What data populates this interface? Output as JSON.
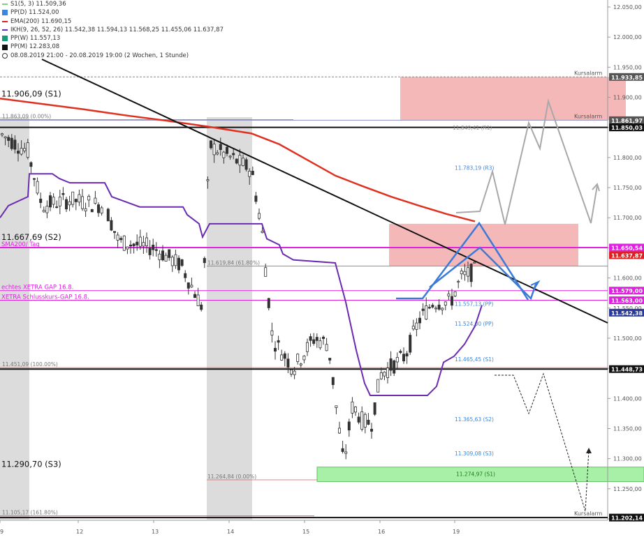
{
  "chart_data": {
    "type": "candlestick",
    "x_ticks": [
      "9",
      "12",
      "13",
      "14",
      "15",
      "16",
      "19"
    ],
    "y_ticks": [
      "12.050,00",
      "12.000,00",
      "11.950,00",
      "11.900,00",
      "11.850,00",
      "11.800,00",
      "11.750,00",
      "11.700,00",
      "11.650,00",
      "11.600,00",
      "11.550,00",
      "11.500,00",
      "11.450,00",
      "11.400,00",
      "11.350,00",
      "11.300,00",
      "11.250,00",
      "11.200,00"
    ],
    "ylim": [
      11195,
      12060
    ],
    "legend": [
      {
        "label": "S1(5, 3) 11.509,36",
        "color": "#7ed07e",
        "kind": "line"
      },
      {
        "label": "PP(D) 11.524,00",
        "color": "#3a86e0",
        "kind": "box"
      },
      {
        "label": "EMA(200) 11.690,15",
        "color": "#e02020",
        "kind": "line"
      },
      {
        "label": "IKH(9, 26, 52, 26) 11.542,38 11.594,13 11.568,25 11.455,06 11.637,87",
        "color": "#6a2bb0",
        "kind": "line"
      },
      {
        "label": "PP(W) 11.557,13",
        "color": "#1a9a7a",
        "kind": "box"
      },
      {
        "label": "PP(M) 12.283,08",
        "color": "#111111",
        "kind": "box"
      },
      {
        "label": "08.08.2019 21:00 - 20.08.2019 19:00  (2 Wochen, 1 Stunde)",
        "color": "#333333",
        "kind": "clock"
      }
    ],
    "price_badges": [
      {
        "value": 11933.85,
        "text": "11.933,85",
        "color": "#555555"
      },
      {
        "value": 11861.97,
        "text": "11.861,97",
        "color": "#555555"
      },
      {
        "value": 11850.03,
        "text": "11.850,03",
        "color": "#111111"
      },
      {
        "value": 11650.54,
        "text": "11.650,54",
        "color": "#e020e0"
      },
      {
        "value": 11637.87,
        "text": "11.637,87",
        "color": "#e02020"
      },
      {
        "value": 11579.0,
        "text": "11.579,00",
        "color": "#e020e0"
      },
      {
        "value": 11563.0,
        "text": "11.563,00",
        "color": "#e020e0"
      },
      {
        "value": 11542.38,
        "text": "11.542,38",
        "color": "#2a3a9a"
      },
      {
        "value": 11448.73,
        "text": "11.448,73",
        "color": "#111111"
      },
      {
        "value": 11202.14,
        "text": "11.202,14",
        "color": "#111111"
      }
    ],
    "side_labels": [
      {
        "text": "11.906,09 (S1)",
        "value": 11906.09
      },
      {
        "text": "11.667,69 (S2)",
        "value": 11667.69
      },
      {
        "text": "11.290,70 (S3)",
        "value": 11290.7
      }
    ],
    "hlines": [
      {
        "value": 11933.85,
        "color": "#888888",
        "dash": true,
        "text": "Kursalarm"
      },
      {
        "value": 11861.97,
        "color": "#9090c0",
        "dash": false,
        "text": "Kursalarm"
      },
      {
        "value": 11850.03,
        "color": "#111111",
        "dash": false,
        "text": ""
      },
      {
        "value": 11650.54,
        "color": "#e020e0",
        "dash": false,
        "text": "SMA200/ Tag"
      },
      {
        "value": 11579.0,
        "color": "#e020e0",
        "dash": false,
        "text": "echtes XETRA GAP 16.8."
      },
      {
        "value": 11563.0,
        "color": "#e020e0",
        "dash": false,
        "text": "XETRA Schlusskurs-GAP 16.8."
      },
      {
        "value": 11448.73,
        "color": "#111111",
        "dash": false,
        "text": ""
      },
      {
        "value": 11202.14,
        "color": "#111111",
        "dash": false,
        "text": "Kursalarm"
      }
    ],
    "fib_labels": [
      {
        "text": "11.863,09 (0.00%)",
        "value": 11863.09
      },
      {
        "text": "11.619,84 (61.80%)",
        "value": 11619.84
      },
      {
        "text": "11.451,09 (100.00%)",
        "value": 11451.09
      },
      {
        "text": "11.264,84 (0.00%)",
        "value": 11264.84
      },
      {
        "text": "11.105,17 (161.80%)",
        "value": 11205.0
      }
    ],
    "pivot_labels": [
      {
        "text": "11.849,41 (R1)",
        "value": 11849.41
      },
      {
        "text": "11.783,19 (R3)",
        "value": 11783.19
      },
      {
        "text": "11.557,13 (PP)",
        "value": 11557.13
      },
      {
        "text": "11.524,00 (PP)",
        "value": 11524.0
      },
      {
        "text": "11.465,45 (S1)",
        "value": 11465.45
      },
      {
        "text": "11.365,63 (S2)",
        "value": 11365.63
      },
      {
        "text": "11.309,08 (S3)",
        "value": 11309.08
      },
      {
        "text": "11.274,97 (S1)",
        "value": 11274.97
      }
    ],
    "zones": [
      {
        "from": 11861.97,
        "to": 11933.85,
        "color": "#f2a0a0"
      },
      {
        "from": 11620,
        "to": 11690,
        "color": "#f2a0a0"
      },
      {
        "from": 11262,
        "to": 11286,
        "color": "#a8f0a8"
      }
    ]
  }
}
